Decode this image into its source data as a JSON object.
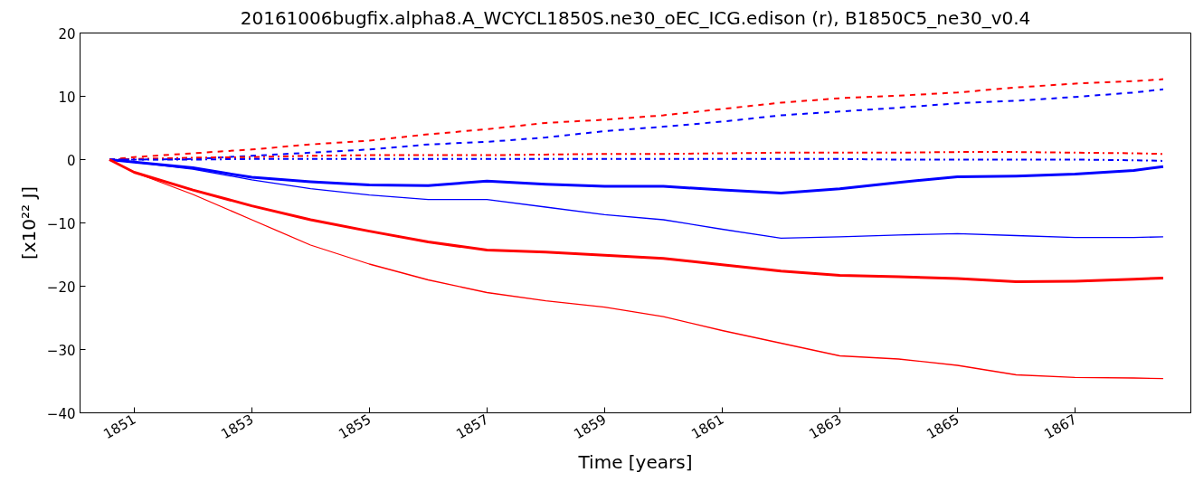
{
  "chart_data": {
    "type": "line",
    "title": "20161006bugfix.alpha8.A_WCYCL1850S.ne30_oEC_ICG.edison (r), B1850C5_ne30_v0.4",
    "xlabel": "Time [years]",
    "ylabel": "[x10²² J]",
    "x": [
      1850.58,
      1851,
      1852,
      1853,
      1854,
      1855,
      1856,
      1857,
      1858,
      1859,
      1860,
      1861,
      1862,
      1863,
      1864,
      1865,
      1866,
      1867,
      1868,
      1868.5
    ],
    "xlim": [
      1850.08,
      1868.97
    ],
    "xticks": [
      1851,
      1853,
      1855,
      1857,
      1859,
      1861,
      1863,
      1865,
      1867
    ],
    "ylim": [
      -40,
      20
    ],
    "yticks": [
      -40,
      -30,
      -20,
      -10,
      0,
      10,
      20
    ],
    "grid": false,
    "marker": "none",
    "series": [
      {
        "color": "#ff0000",
        "line_style": "dashed",
        "values": [
          0,
          0.4,
          1.0,
          1.6,
          2.4,
          3.0,
          4.0,
          4.8,
          5.8,
          6.3,
          7.0,
          8.0,
          9.0,
          9.7,
          10.1,
          10.6,
          11.4,
          12.0,
          12.4,
          12.7
        ]
      },
      {
        "color": "#0000ff",
        "line_style": "dashed",
        "values": [
          0,
          0,
          0.1,
          0.6,
          1.1,
          1.6,
          2.4,
          2.8,
          3.5,
          4.5,
          5.2,
          6.0,
          7.0,
          7.6,
          8.2,
          8.9,
          9.3,
          9.9,
          10.6,
          11.1
        ]
      },
      {
        "color": "#ff0000",
        "line_style": "dashdot",
        "values": [
          0,
          0.1,
          0.3,
          0.4,
          0.6,
          0.7,
          0.7,
          0.7,
          0.8,
          0.9,
          0.9,
          1.0,
          1.1,
          1.1,
          1.1,
          1.2,
          1.2,
          1.1,
          1.0,
          0.9
        ]
      },
      {
        "color": "#0000ff",
        "line_style": "dashdot",
        "values": [
          0,
          0,
          0,
          0.1,
          0.1,
          0.1,
          0.1,
          0.1,
          0.1,
          0.1,
          0.1,
          0.1,
          0.1,
          0.1,
          0,
          0,
          0,
          0,
          -0.1,
          -0.2
        ]
      },
      {
        "color": "#0000ff",
        "line_style": "solid",
        "values": [
          0,
          -0.4,
          -1.3,
          -2.8,
          -3.5,
          -4.0,
          -4.1,
          -3.4,
          -3.9,
          -4.2,
          -4.2,
          -4.8,
          -5.3,
          -4.6,
          -3.6,
          -2.7,
          -2.6,
          -2.3,
          -1.7,
          -1.1
        ]
      },
      {
        "color": "#0000ff",
        "line_style": "solid",
        "values": [
          0,
          -0.4,
          -1.5,
          -3.2,
          -4.6,
          -5.6,
          -6.3,
          -6.3,
          -7.5,
          -8.7,
          -9.5,
          -11.0,
          -12.4,
          -12.2,
          -11.9,
          -11.7,
          -12.0,
          -12.3,
          -12.3,
          -12.2
        ]
      },
      {
        "color": "#ff0000",
        "line_style": "solid",
        "values": [
          0,
          -2.0,
          -4.8,
          -7.3,
          -9.5,
          -11.3,
          -13.0,
          -14.3,
          -14.6,
          -15.1,
          -15.6,
          -16.6,
          -17.6,
          -18.3,
          -18.5,
          -18.8,
          -19.3,
          -19.2,
          -18.9,
          -18.7
        ]
      },
      {
        "color": "#ff0000",
        "line_style": "solid",
        "values": [
          0,
          -2.0,
          -5.5,
          -9.5,
          -13.5,
          -16.5,
          -19.0,
          -21.0,
          -22.3,
          -23.3,
          -24.8,
          -27.0,
          -29.0,
          -31.0,
          -31.5,
          -32.5,
          -34.0,
          -34.4,
          -34.5,
          -34.6
        ]
      }
    ]
  }
}
